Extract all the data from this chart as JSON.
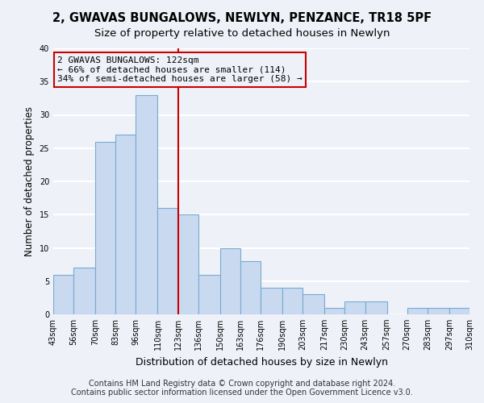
{
  "title": "2, GWAVAS BUNGALOWS, NEWLYN, PENZANCE, TR18 5PF",
  "subtitle": "Size of property relative to detached houses in Newlyn",
  "xlabel": "Distribution of detached houses by size in Newlyn",
  "ylabel": "Number of detached properties",
  "bar_color": "#c8d9f0",
  "bar_edge_color": "#7aaad0",
  "vline_x": 123,
  "vline_color": "#cc0000",
  "annotation_title": "2 GWAVAS BUNGALOWS: 122sqm",
  "annotation_line1": "← 66% of detached houses are smaller (114)",
  "annotation_line2": "34% of semi-detached houses are larger (58) →",
  "annotation_box_edge": "#cc0000",
  "bins": [
    43,
    56,
    70,
    83,
    96,
    110,
    123,
    136,
    150,
    163,
    176,
    190,
    203,
    217,
    230,
    243,
    257,
    270,
    283,
    297,
    310
  ],
  "counts": [
    6,
    7,
    26,
    27,
    33,
    16,
    15,
    6,
    10,
    8,
    4,
    4,
    3,
    1,
    2,
    2,
    0,
    1,
    1,
    1
  ],
  "tick_labels": [
    "43sqm",
    "56sqm",
    "70sqm",
    "83sqm",
    "96sqm",
    "110sqm",
    "123sqm",
    "136sqm",
    "150sqm",
    "163sqm",
    "176sqm",
    "190sqm",
    "203sqm",
    "217sqm",
    "230sqm",
    "243sqm",
    "257sqm",
    "270sqm",
    "283sqm",
    "297sqm",
    "310sqm"
  ],
  "ylim": [
    0,
    40
  ],
  "yticks": [
    0,
    5,
    10,
    15,
    20,
    25,
    30,
    35,
    40
  ],
  "footer1": "Contains HM Land Registry data © Crown copyright and database right 2024.",
  "footer2": "Contains public sector information licensed under the Open Government Licence v3.0.",
  "background_color": "#eef2f8",
  "plot_bg_color": "#eef2f8",
  "grid_color": "#ffffff",
  "title_fontsize": 10.5,
  "subtitle_fontsize": 9.5,
  "xlabel_fontsize": 9,
  "ylabel_fontsize": 8.5,
  "tick_fontsize": 7,
  "annot_fontsize": 8,
  "footer_fontsize": 7
}
